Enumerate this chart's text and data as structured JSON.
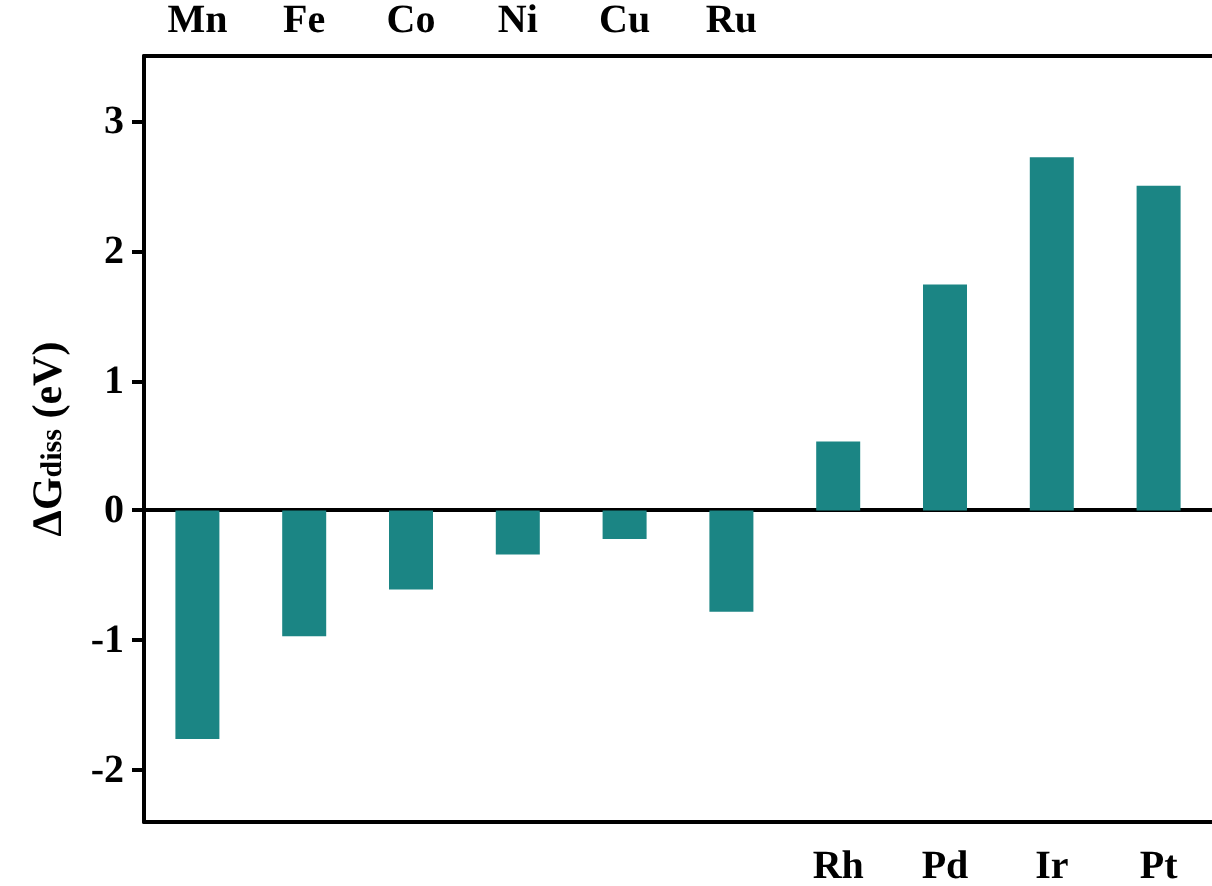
{
  "chart_data": {
    "type": "bar",
    "ylabel": "ΔG$_{diss}$ (eV)",
    "categories": [
      "Mn",
      "Fe",
      "Co",
      "Ni",
      "Cu",
      "Ru",
      "Rh",
      "Pd",
      "Ir",
      "Pt"
    ],
    "values": [
      -1.76,
      -0.97,
      -0.61,
      -0.34,
      -0.22,
      -0.78,
      0.53,
      1.74,
      2.72,
      2.5
    ],
    "color": "#1b8584",
    "ylim": [
      -2.4,
      3.5
    ],
    "yticks": [
      -2,
      -1,
      0,
      1,
      2,
      3
    ]
  }
}
